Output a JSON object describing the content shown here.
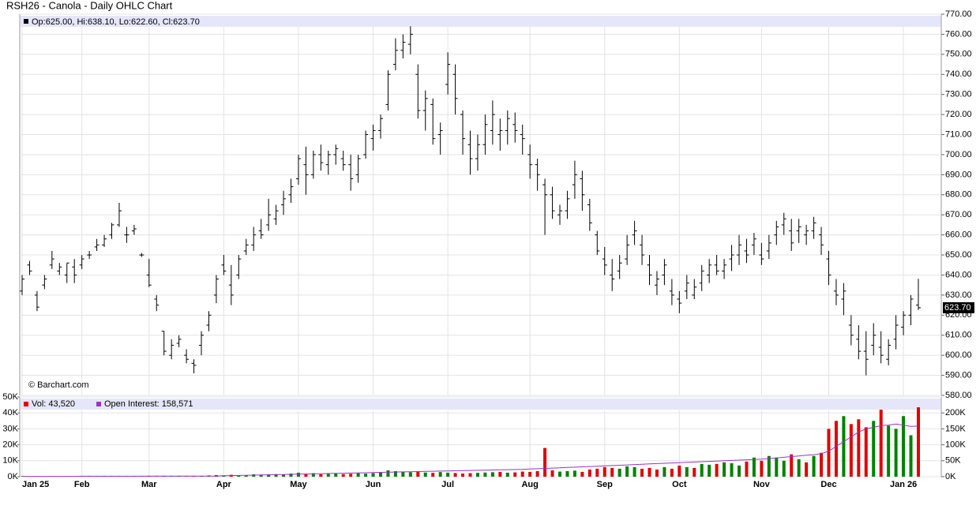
{
  "chart_data": {
    "type": "ohlc",
    "title": "RSH26 - Canola - Daily OHLC Chart",
    "ohlc_legend": "Op:625.00, Hi:638.10, Lo:622.60, Cl:623.70",
    "last_label": "623.70",
    "watermark": "© Barchart.com",
    "color": "#000000",
    "grid": true,
    "categories": [
      "Jan 25",
      null,
      null,
      null,
      null,
      null,
      null,
      null,
      "Feb",
      null,
      null,
      null,
      null,
      null,
      null,
      null,
      null,
      "Mar",
      null,
      null,
      null,
      null,
      null,
      null,
      null,
      null,
      null,
      "Apr",
      null,
      null,
      null,
      null,
      null,
      null,
      null,
      null,
      null,
      "May",
      null,
      null,
      null,
      null,
      null,
      null,
      null,
      null,
      null,
      "Jun",
      null,
      null,
      null,
      null,
      null,
      null,
      null,
      null,
      null,
      "Jul",
      null,
      null,
      null,
      null,
      null,
      null,
      null,
      null,
      null,
      null,
      "Aug",
      null,
      null,
      null,
      null,
      null,
      null,
      null,
      null,
      null,
      "Sep",
      null,
      null,
      null,
      null,
      null,
      null,
      null,
      null,
      null,
      "Oct",
      null,
      null,
      null,
      null,
      null,
      null,
      null,
      null,
      null,
      null,
      "Nov",
      null,
      null,
      null,
      null,
      null,
      null,
      null,
      null,
      "Dec",
      null,
      null,
      null,
      null,
      null,
      null,
      null,
      null,
      null,
      "Jan 26",
      null,
      null
    ],
    "open": [
      632,
      645,
      630,
      635,
      645,
      642,
      640,
      644,
      645,
      650,
      654,
      655,
      660,
      665,
      660,
      662,
      650,
      640,
      628,
      612,
      600,
      606,
      600,
      596,
      605,
      615,
      630,
      645,
      635,
      640,
      652,
      655,
      662,
      665,
      668,
      675,
      680,
      688,
      695,
      690,
      700,
      695,
      700,
      698,
      695,
      690,
      700,
      708,
      712,
      725,
      745,
      752,
      755,
      740,
      722,
      725,
      710,
      735,
      740,
      720,
      705,
      698,
      705,
      712,
      710,
      712,
      715,
      710,
      700,
      695,
      685,
      680,
      670,
      672,
      685,
      688,
      675,
      660,
      648,
      640,
      642,
      648,
      660,
      655,
      645,
      635,
      640,
      632,
      628,
      632,
      630,
      636,
      640,
      645,
      642,
      648,
      650,
      652,
      655,
      650,
      652,
      660,
      665,
      662,
      662,
      660,
      662,
      660,
      648,
      632,
      628,
      615,
      608,
      602,
      605,
      604,
      598,
      608,
      614,
      620,
      625
    ],
    "high": [
      640,
      647,
      632,
      640,
      652,
      646,
      646,
      648,
      650,
      652,
      658,
      660,
      666,
      676,
      664,
      665,
      651,
      648,
      630,
      612,
      608,
      610,
      603,
      598,
      612,
      622,
      640,
      650,
      645,
      650,
      658,
      664,
      668,
      678,
      675,
      682,
      688,
      700,
      704,
      702,
      705,
      702,
      705,
      702,
      700,
      700,
      712,
      715,
      720,
      742,
      758,
      760,
      764,
      745,
      732,
      728,
      716,
      751,
      745,
      722,
      712,
      710,
      720,
      727,
      718,
      722,
      721,
      715,
      705,
      698,
      688,
      684,
      675,
      682,
      697,
      692,
      678,
      662,
      654,
      648,
      650,
      660,
      667,
      660,
      650,
      642,
      648,
      638,
      632,
      640,
      638,
      645,
      648,
      650,
      648,
      655,
      660,
      658,
      661,
      656,
      660,
      667,
      671,
      668,
      668,
      665,
      669,
      664,
      652,
      638,
      636,
      620,
      615,
      612,
      616,
      612,
      608,
      620,
      622,
      630,
      638.1
    ],
    "low": [
      630,
      640,
      622,
      633,
      643,
      640,
      636,
      636,
      643,
      648,
      652,
      654,
      658,
      664,
      656,
      660,
      649,
      634,
      622,
      600,
      598,
      604,
      596,
      591,
      600,
      612,
      626,
      640,
      625,
      638,
      650,
      652,
      658,
      662,
      665,
      670,
      676,
      685,
      680,
      688,
      692,
      690,
      695,
      692,
      682,
      686,
      698,
      702,
      708,
      722,
      742,
      748,
      750,
      718,
      712,
      705,
      700,
      730,
      720,
      700,
      690,
      692,
      700,
      705,
      702,
      705,
      706,
      700,
      688,
      682,
      660,
      668,
      665,
      668,
      678,
      672,
      662,
      650,
      640,
      632,
      638,
      645,
      655,
      645,
      635,
      630,
      635,
      625,
      621,
      628,
      628,
      632,
      636,
      640,
      638,
      642,
      645,
      646,
      650,
      645,
      648,
      655,
      660,
      652,
      656,
      655,
      658,
      650,
      635,
      625,
      620,
      605,
      598,
      590,
      600,
      596,
      595,
      603,
      610,
      615,
      622.6
    ],
    "close": [
      638,
      642,
      624,
      638,
      648,
      644,
      646,
      640,
      648,
      650,
      655,
      658,
      665,
      672,
      660,
      663,
      650,
      635,
      625,
      602,
      605,
      608,
      598,
      595,
      610,
      620,
      638,
      642,
      630,
      648,
      655,
      660,
      660,
      670,
      672,
      678,
      684,
      698,
      690,
      700,
      696,
      700,
      703,
      695,
      688,
      698,
      710,
      712,
      718,
      740,
      752,
      756,
      760,
      722,
      728,
      708,
      712,
      745,
      728,
      708,
      698,
      705,
      715,
      720,
      712,
      718,
      712,
      708,
      695,
      690,
      680,
      672,
      672,
      678,
      690,
      680,
      666,
      652,
      645,
      638,
      646,
      655,
      662,
      650,
      640,
      638,
      645,
      630,
      626,
      636,
      634,
      642,
      645,
      642,
      645,
      650,
      655,
      650,
      658,
      648,
      656,
      664,
      668,
      656,
      664,
      662,
      666,
      655,
      640,
      630,
      632,
      610,
      602,
      598,
      610,
      600,
      605,
      615,
      620,
      628,
      623.7
    ],
    "ylim": [
      580,
      770
    ],
    "yticks": [
      {
        "value": 580,
        "label": "580.00"
      },
      {
        "value": 590,
        "label": "590.00"
      },
      {
        "value": 600,
        "label": "600.00"
      },
      {
        "value": 610,
        "label": "610.00"
      },
      {
        "value": 620,
        "label": "620.00"
      },
      {
        "value": 630,
        "label": "630.00"
      },
      {
        "value": 640,
        "label": "640.00"
      },
      {
        "value": 650,
        "label": "650.00"
      },
      {
        "value": 660,
        "label": "660.00"
      },
      {
        "value": 670,
        "label": "670.00"
      },
      {
        "value": 680,
        "label": "680.00"
      },
      {
        "value": 690,
        "label": "690.00"
      },
      {
        "value": 700,
        "label": "700.00"
      },
      {
        "value": 710,
        "label": "710.00"
      },
      {
        "value": 720,
        "label": "720.00"
      },
      {
        "value": 730,
        "label": "730.00"
      },
      {
        "value": 740,
        "label": "740.00"
      },
      {
        "value": 750,
        "label": "750.00"
      },
      {
        "value": 760,
        "label": "760.00"
      },
      {
        "value": 770,
        "label": "770.00"
      }
    ],
    "volume": {
      "name": "Vol: 43,520",
      "color": "#e00000",
      "up_color": "#008000",
      "values": [
        300,
        200,
        300,
        200,
        300,
        200,
        300,
        200,
        200,
        300,
        200,
        300,
        200,
        300,
        200,
        300,
        200,
        300,
        200,
        300,
        200,
        300,
        200,
        400,
        500,
        800,
        1000,
        800,
        1200,
        900,
        1000,
        1500,
        1200,
        1400,
        1600,
        1300,
        2000,
        2500,
        1800,
        2200,
        1500,
        1700,
        2000,
        1600,
        1800,
        2400,
        1900,
        2200,
        2500,
        4000,
        3500,
        3000,
        2800,
        3200,
        2600,
        2400,
        2900,
        2500,
        2300,
        2000,
        2200,
        2400,
        2600,
        2800,
        3000,
        2500,
        2700,
        3200,
        3000,
        3500,
        18000,
        4000,
        3200,
        3500,
        3800,
        3000,
        4500,
        5000,
        6000,
        5500,
        5000,
        6500,
        6000,
        5000,
        5500,
        4500,
        6000,
        5000,
        7000,
        6000,
        5500,
        8000,
        7500,
        8000,
        9000,
        8500,
        7000,
        9500,
        12000,
        10000,
        13000,
        12000,
        10000,
        14000,
        11000,
        9000,
        13000,
        15000,
        30000,
        35000,
        38000,
        33000,
        36000,
        31000,
        35000,
        42000,
        32000,
        30000,
        38000,
        26000,
        43520
      ],
      "ylim": [
        0,
        50000
      ],
      "yticks": [
        {
          "value": 0,
          "label": "0K"
        },
        {
          "value": 10000,
          "label": "10K"
        },
        {
          "value": 20000,
          "label": "20K"
        },
        {
          "value": 30000,
          "label": "30K"
        },
        {
          "value": 40000,
          "label": "40K"
        },
        {
          "value": 50000,
          "label": "50K"
        }
      ]
    },
    "open_interest": {
      "name": "Open Interest: 158,571",
      "color": "#9933cc",
      "values": [
        1000,
        1000,
        1000,
        1000,
        1000,
        1000,
        1000,
        1000,
        1500,
        1500,
        1500,
        1500,
        1500,
        1500,
        1500,
        1500,
        1500,
        2000,
        2000,
        2000,
        2000,
        2000,
        2000,
        2000,
        2000,
        2000,
        2000,
        3000,
        3500,
        4000,
        4500,
        5000,
        5500,
        6000,
        6500,
        7000,
        7500,
        8000,
        8500,
        9000,
        9500,
        10000,
        10500,
        11000,
        11500,
        12000,
        12500,
        13000,
        13500,
        14000,
        14500,
        15000,
        15500,
        16000,
        16500,
        17000,
        17500,
        18000,
        18500,
        19000,
        19500,
        20000,
        20500,
        21000,
        21500,
        22000,
        22500,
        23000,
        24000,
        25000,
        26000,
        27000,
        28000,
        29000,
        30000,
        31000,
        32000,
        33000,
        34000,
        35000,
        36000,
        37000,
        38000,
        39000,
        40000,
        41000,
        42000,
        43000,
        44000,
        45000,
        46000,
        47000,
        48000,
        49000,
        50000,
        51000,
        52000,
        53000,
        54000,
        55000,
        57000,
        59000,
        61000,
        63000,
        65000,
        67000,
        69000,
        72000,
        80000,
        95000,
        110000,
        125000,
        140000,
        150000,
        155000,
        160000,
        162000,
        165000,
        162000,
        158000,
        158571
      ],
      "ylim": [
        0,
        250000
      ],
      "yticks": [
        {
          "value": 0,
          "label": "0K"
        },
        {
          "value": 50000,
          "label": "50K"
        },
        {
          "value": 100000,
          "label": "100K"
        },
        {
          "value": 150000,
          "label": "150K"
        },
        {
          "value": 200000,
          "label": "200K"
        }
      ]
    }
  }
}
